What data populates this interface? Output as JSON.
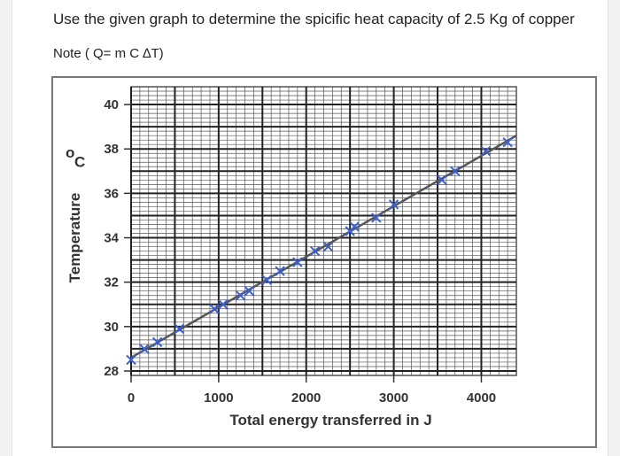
{
  "question": {
    "text": "Use the given graph to determine the spicific heat capacity of 2.5 Kg  of copper",
    "note": "Note ( Q= m C ∆T)"
  },
  "chart_data": {
    "type": "scatter",
    "xlabel": "Total energy transferred in J",
    "ylabel": "Temperature",
    "ylabel_unit": "oC",
    "xlim": [
      0,
      4400
    ],
    "ylim": [
      27.8,
      40.8
    ],
    "x_ticks": [
      0,
      1000,
      2000,
      3000,
      4000
    ],
    "y_ticks": [
      28,
      30,
      32,
      34,
      36,
      38,
      40
    ],
    "grid": true,
    "legend": "none",
    "line_color": "#555555",
    "marker_color": "#3b5fd1",
    "best_fit_line": [
      [
        0,
        28.6
      ],
      [
        4400,
        38.6
      ]
    ],
    "points": [
      [
        0,
        28.5
      ],
      [
        150,
        29.0
      ],
      [
        300,
        29.3
      ],
      [
        550,
        29.9
      ],
      [
        950,
        30.8
      ],
      [
        1050,
        31.0
      ],
      [
        1250,
        31.4
      ],
      [
        1350,
        31.6
      ],
      [
        1550,
        32.1
      ],
      [
        1700,
        32.5
      ],
      [
        1900,
        32.9
      ],
      [
        2100,
        33.4
      ],
      [
        2250,
        33.6
      ],
      [
        2500,
        34.3
      ],
      [
        2550,
        34.5
      ],
      [
        2800,
        34.9
      ],
      [
        3000,
        35.5
      ],
      [
        3550,
        36.6
      ],
      [
        3700,
        37.0
      ],
      [
        4050,
        37.9
      ],
      [
        4300,
        38.3
      ]
    ]
  }
}
